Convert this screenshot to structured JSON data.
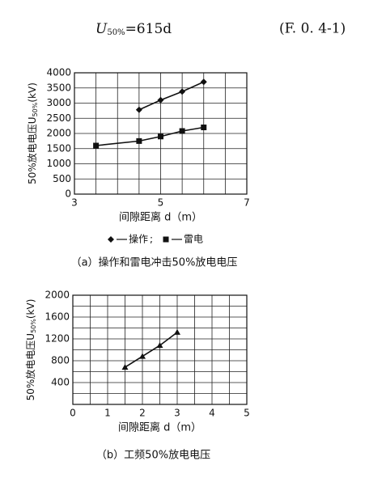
{
  "formula": {
    "lhs": "U",
    "sub": "50%",
    "rhs": "=615d",
    "number": "(F. 0. 4-1)"
  },
  "chart_data": [
    {
      "type": "line",
      "xlim": [
        3,
        7
      ],
      "xticks": [
        3,
        5,
        7
      ],
      "xgrid": [
        3.5,
        4,
        4.5,
        5.5,
        6,
        6.5
      ],
      "ylim": [
        0,
        4000
      ],
      "yticks": [
        0,
        500,
        1000,
        1500,
        2000,
        2500,
        3000,
        3500,
        4000
      ],
      "xlabel": "间隙距离 d（m）",
      "ylabel": {
        "text": "50%放电电压U",
        "sub": "50%",
        "unit": "(kV)"
      },
      "series": [
        {
          "name": "操作",
          "marker": "diamond",
          "color": "#111",
          "x": [
            4.5,
            5,
            5.5,
            6
          ],
          "values": [
            2780,
            3100,
            3380,
            3700
          ]
        },
        {
          "name": "雷电",
          "marker": "square",
          "color": "#111",
          "x": [
            3.5,
            4.5,
            5,
            5.5,
            6
          ],
          "values": [
            1600,
            1750,
            1900,
            2080,
            2200
          ]
        }
      ],
      "legend_separator": ";",
      "caption": "（a）操作和雷电冲击50%放电电压"
    },
    {
      "type": "line",
      "xlim": [
        0,
        5
      ],
      "xticks": [
        0,
        1,
        2,
        3,
        4,
        5
      ],
      "xgrid": [
        0.5,
        1.5,
        2.5,
        3.5,
        4.5
      ],
      "ylim": [
        0,
        2000
      ],
      "yticks": [
        400,
        800,
        1200,
        1600,
        2000
      ],
      "ygrid": [
        200,
        600,
        1000,
        1400,
        1800
      ],
      "xlabel": "间隙距离 d（m）",
      "ylabel": {
        "text": "50%放电电压U",
        "sub": "50%",
        "unit": "(kV)"
      },
      "series": [
        {
          "marker": "triangle",
          "color": "#111",
          "x": [
            1.5,
            2,
            2.5,
            3
          ],
          "values": [
            680,
            880,
            1080,
            1320
          ]
        }
      ],
      "caption": "（b）工频50%放电电压"
    }
  ]
}
